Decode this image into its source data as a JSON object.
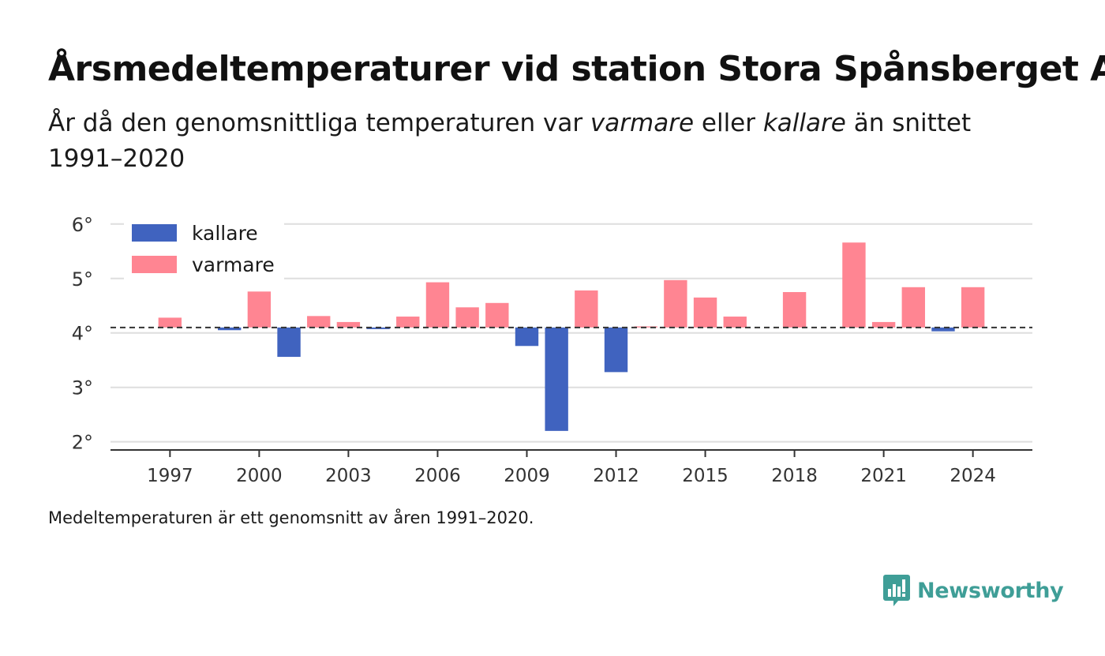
{
  "header": {
    "title": "Årsmedeltemperaturer vid station Stora Spånsberget A",
    "subtitle_part1": "År då den genomsnittliga temperaturen var ",
    "subtitle_warm": "varmare",
    "subtitle_part2": " eller ",
    "subtitle_cold": "kallare",
    "subtitle_part3": " än snittet 1991–2020"
  },
  "footnote": "Medeltemperaturen är ett genomsnitt av åren 1991–2020.",
  "brand": {
    "name": "Newsworthy",
    "icon": "newsworthy-logo-icon",
    "color": "#3f9e97"
  },
  "chart_data": {
    "type": "bar",
    "baseline": 4.1,
    "ylim": [
      1.85,
      6.2
    ],
    "yticks": [
      2,
      3,
      4,
      5,
      6
    ],
    "ytick_labels": [
      "2°",
      "3°",
      "4°",
      "5°",
      "6°"
    ],
    "xlim": [
      1995.0,
      2026.0
    ],
    "xticks": [
      1997,
      2000,
      2003,
      2006,
      2009,
      2012,
      2015,
      2018,
      2021,
      2024
    ],
    "xtick_labels": [
      "1997",
      "2000",
      "2003",
      "2006",
      "2009",
      "2012",
      "2015",
      "2018",
      "2021",
      "2024"
    ],
    "grid": "horizontal",
    "legend": {
      "placement": "top-left",
      "items": [
        {
          "key": "kallare",
          "label": "kallare",
          "color": "#4063bf"
        },
        {
          "key": "varmare",
          "label": "varmare",
          "color": "#ff8592"
        }
      ]
    },
    "x": [
      1997,
      1999,
      2000,
      2001,
      2002,
      2003,
      2004,
      2005,
      2006,
      2007,
      2008,
      2009,
      2010,
      2011,
      2012,
      2013,
      2014,
      2015,
      2016,
      2018,
      2020,
      2021,
      2022,
      2023,
      2024
    ],
    "values": [
      4.28,
      4.05,
      4.76,
      3.56,
      4.31,
      4.2,
      4.07,
      4.3,
      4.93,
      4.47,
      4.55,
      3.76,
      2.2,
      4.78,
      3.28,
      4.12,
      4.97,
      4.65,
      4.3,
      4.75,
      5.66,
      4.2,
      4.84,
      4.03,
      4.84
    ]
  }
}
